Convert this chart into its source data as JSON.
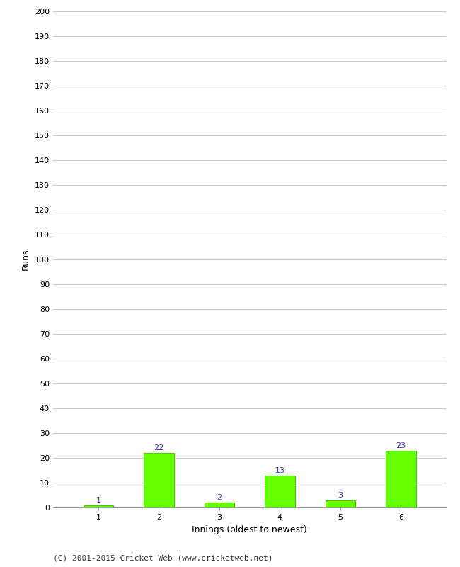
{
  "categories": [
    1,
    2,
    3,
    4,
    5,
    6
  ],
  "values": [
    1,
    22,
    2,
    13,
    3,
    23
  ],
  "bar_color": "#66ff00",
  "bar_edge_color": "#44cc00",
  "label_color": "#3333cc",
  "xlabel": "Innings (oldest to newest)",
  "ylabel": "Runs",
  "ylim": [
    0,
    200
  ],
  "yticks": [
    0,
    10,
    20,
    30,
    40,
    50,
    60,
    70,
    80,
    90,
    100,
    110,
    120,
    130,
    140,
    150,
    160,
    170,
    180,
    190,
    200
  ],
  "footer": "(C) 2001-2015 Cricket Web (www.cricketweb.net)",
  "background_color": "#ffffff",
  "grid_color": "#cccccc",
  "label_fontsize": 8,
  "axis_fontsize": 8,
  "footer_fontsize": 8
}
